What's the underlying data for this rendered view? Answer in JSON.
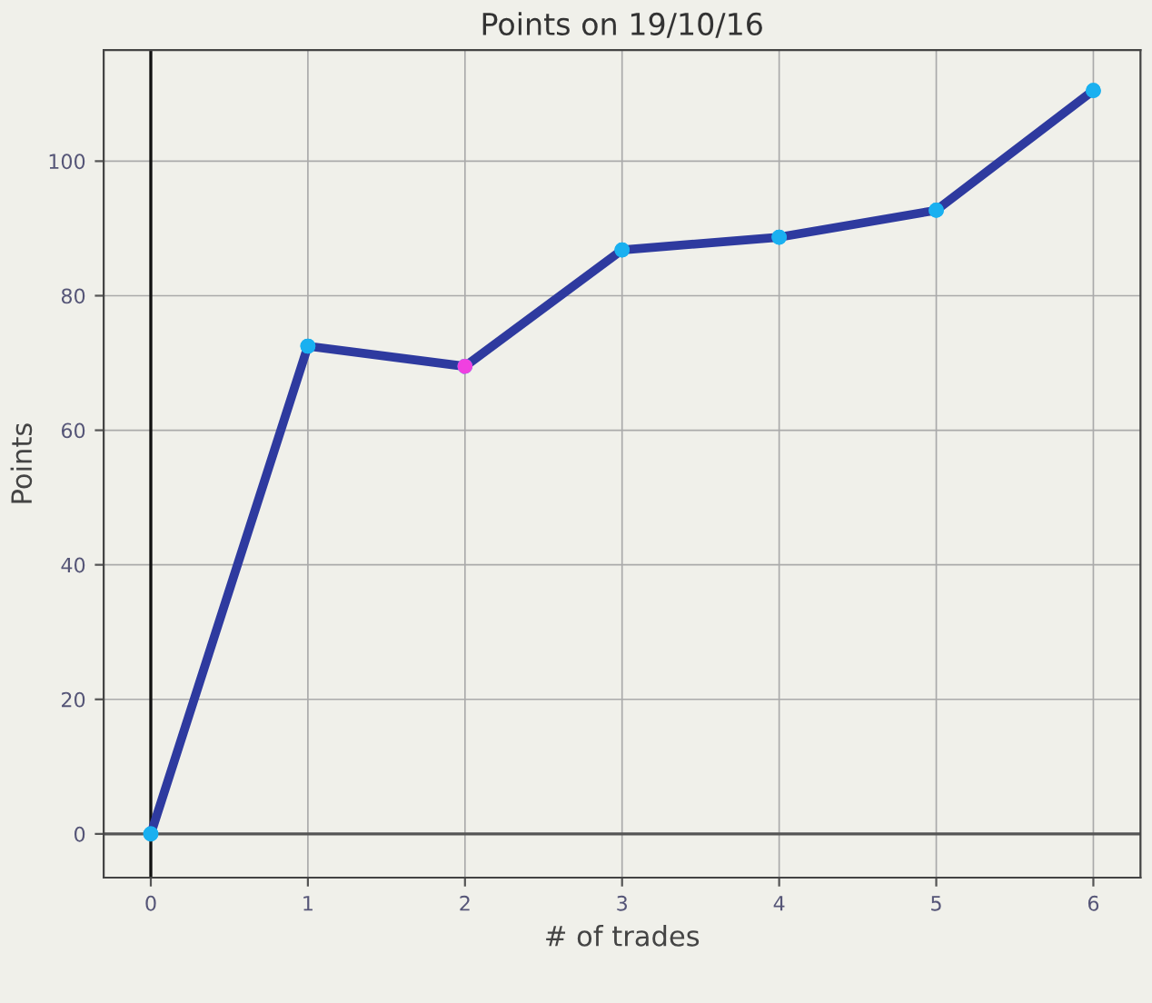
{
  "chart_data": {
    "type": "line",
    "title": "Points on 19/10/16",
    "xlabel": "# of trades",
    "ylabel": "Points",
    "x": [
      0,
      1,
      2,
      3,
      4,
      5,
      6
    ],
    "series": [
      {
        "color": "#2e3a9f",
        "colors": [
          "#1ab0f0",
          "#1ab0f0",
          "#f040e0",
          "#1ab0f0",
          "#1ab0f0",
          "#1ab0f0",
          "#1ab0f0"
        ],
        "values": [
          0,
          72.5,
          69.5,
          86.8,
          88.7,
          92.7,
          110.5
        ]
      }
    ],
    "xlim": [
      -0.3,
      6.3
    ],
    "ylim": [
      -6.5,
      116.5
    ],
    "xticks": [
      0,
      1,
      2,
      3,
      4,
      5,
      6
    ],
    "yticks": [
      0,
      20,
      40,
      60,
      80,
      100
    ],
    "grid": true,
    "marker": "circle",
    "line_style": "solid",
    "ref_lines": [
      {
        "axis": "x",
        "value": 0,
        "color": "#111111"
      },
      {
        "axis": "y",
        "value": 0,
        "color": "#555555"
      }
    ]
  }
}
